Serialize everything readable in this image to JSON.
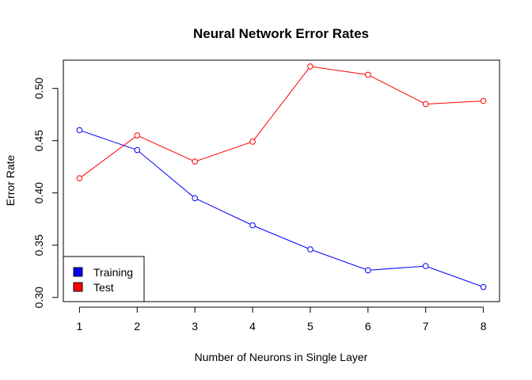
{
  "chart_data": {
    "type": "line",
    "title": "Neural Network Error Rates",
    "xlabel": "Number of Neurons in Single Layer",
    "ylabel": "Error Rate",
    "x": [
      1,
      2,
      3,
      4,
      5,
      6,
      7,
      8
    ],
    "x_ticks": [
      "1",
      "2",
      "3",
      "4",
      "5",
      "6",
      "7",
      "8"
    ],
    "y_ticks": [
      "0.30",
      "0.35",
      "0.40",
      "0.45",
      "0.50"
    ],
    "y_tick_values": [
      0.3,
      0.35,
      0.4,
      0.45,
      0.5
    ],
    "xlim": [
      0.72,
      8.28
    ],
    "ylim": [
      0.296,
      0.527
    ],
    "grid": false,
    "legend_position": "bottom-left",
    "series": [
      {
        "name": "Training",
        "color": "#0000ff",
        "values": [
          0.46,
          0.441,
          0.395,
          0.369,
          0.346,
          0.326,
          0.33,
          0.31
        ]
      },
      {
        "name": "Test",
        "color": "#ff0000",
        "values": [
          0.414,
          0.455,
          0.43,
          0.449,
          0.521,
          0.513,
          0.485,
          0.488
        ]
      }
    ]
  }
}
